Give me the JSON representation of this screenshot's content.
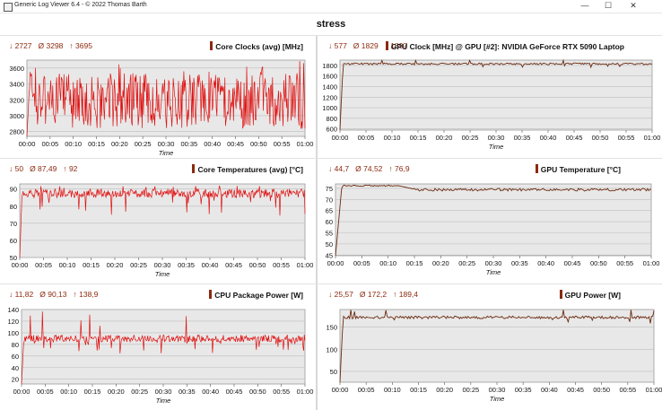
{
  "window": {
    "title": "Generic Log Viewer 6.4 - © 2022 Thomas Barth",
    "min_label": "—",
    "max_label": "☐",
    "close_label": "✕"
  },
  "header": {
    "title": "stress"
  },
  "colors": {
    "accent": "#8b2a0f",
    "series_red": "#e01010",
    "series_brown": "#6b2a10",
    "plot_bg": "#e8e8e8",
    "grid": "#bdbdbd"
  },
  "panels": [
    {
      "id": "core-clocks",
      "title": "Core Clocks (avg) [MHz]",
      "stats": {
        "min": "↓ 2727",
        "avg": "Ø 3298",
        "max": "↑ 3695"
      },
      "chart_data": {
        "type": "line",
        "title": "Core Clocks (avg) [MHz]",
        "xlabel": "Time",
        "x_ticks": [
          "00:00",
          "00:05",
          "00:10",
          "00:15",
          "00:20",
          "00:25",
          "00:30",
          "00:35",
          "00:40",
          "00:45",
          "00:50",
          "00:55",
          "01:00"
        ],
        "y_ticks": [
          2800,
          3000,
          3200,
          3400,
          3600
        ],
        "ylim": [
          2740,
          3700
        ],
        "series": [
          {
            "color": "#e01010",
            "kind": "noise",
            "baseline": 3298,
            "low": 2880,
            "high": 3560,
            "start": 2727,
            "peak": 3695,
            "min": 2727
          }
        ]
      }
    },
    {
      "id": "gpu-clock",
      "title": "GPU Clock [MHz] @ GPU [#2]: NVIDIA GeForce RTX 5090 Laptop",
      "stats": {
        "min": "↓ 577",
        "avg": "Ø 1829",
        "max": "↑ 1897"
      },
      "chart_data": {
        "type": "line",
        "title": "GPU Clock [MHz] @ GPU [#2]: NVIDIA GeForce RTX 5090 Laptop",
        "xlabel": "Time",
        "x_ticks": [
          "00:00",
          "00:05",
          "00:10",
          "00:15",
          "00:20",
          "00:25",
          "00:30",
          "00:35",
          "00:40",
          "00:45",
          "00:50",
          "00:55",
          "01:00"
        ],
        "y_ticks": [
          600,
          800,
          1000,
          1200,
          1400,
          1600,
          1800
        ],
        "ylim": [
          577,
          1900
        ],
        "series": [
          {
            "color": "#6b2a10",
            "kind": "flat",
            "baseline": 1829,
            "low": 1800,
            "high": 1870,
            "start": 577,
            "peak": 1897,
            "min": 577
          }
        ]
      }
    },
    {
      "id": "core-temps",
      "title": "Core Temperatures (avg) [°C]",
      "stats": {
        "min": "↓ 50",
        "avg": "Ø 87,49",
        "max": "↑ 92"
      },
      "chart_data": {
        "type": "line",
        "title": "Core Temperatures (avg) [°C]",
        "xlabel": "Time",
        "x_ticks": [
          "00:00",
          "00:05",
          "00:10",
          "00:15",
          "00:20",
          "00:25",
          "00:30",
          "00:35",
          "00:40",
          "00:45",
          "00:50",
          "00:55",
          "01:00"
        ],
        "y_ticks": [
          50,
          60,
          70,
          80,
          90
        ],
        "ylim": [
          50,
          93
        ],
        "series": [
          {
            "color": "#e01010",
            "kind": "noise",
            "baseline": 87.5,
            "low": 85,
            "high": 90,
            "start": 50,
            "peak": 92,
            "min": 50
          }
        ]
      }
    },
    {
      "id": "gpu-temp",
      "title": "GPU Temperature [°C]",
      "stats": {
        "min": "↓ 44,7",
        "avg": "Ø 74,52",
        "max": "↑ 76,9"
      },
      "chart_data": {
        "type": "line",
        "title": "GPU Temperature [°C]",
        "xlabel": "Time",
        "x_ticks": [
          "00:00",
          "00:05",
          "00:10",
          "00:15",
          "00:20",
          "00:25",
          "00:30",
          "00:35",
          "00:40",
          "00:45",
          "00:50",
          "00:55",
          "01:00"
        ],
        "y_ticks": [
          45,
          50,
          55,
          60,
          65,
          70,
          75
        ],
        "ylim": [
          44.7,
          77
        ],
        "series": [
          {
            "color": "#6b2a10",
            "kind": "warmup",
            "baseline": 74.4,
            "low": 73.8,
            "high": 75,
            "start": 44.7,
            "peak": 76.9,
            "min": 44.7
          }
        ]
      }
    },
    {
      "id": "cpu-power",
      "title": "CPU Package Power [W]",
      "stats": {
        "min": "↓ 11,82",
        "avg": "Ø 90,13",
        "max": "↑ 138,9"
      },
      "chart_data": {
        "type": "line",
        "title": "CPU Package Power [W]",
        "xlabel": "Time",
        "x_ticks": [
          "00:00",
          "00:05",
          "00:10",
          "00:15",
          "00:20",
          "00:25",
          "00:30",
          "00:35",
          "00:40",
          "00:45",
          "00:50",
          "00:55",
          "01:00"
        ],
        "y_ticks": [
          20,
          40,
          60,
          80,
          100,
          120,
          140
        ],
        "ylim": [
          11.82,
          140
        ],
        "series": [
          {
            "color": "#e01010",
            "kind": "noise",
            "baseline": 90,
            "low": 84,
            "high": 96,
            "start": 11.82,
            "peak": 138.9,
            "min": 11.82
          }
        ]
      }
    },
    {
      "id": "gpu-power",
      "title": "GPU Power [W]",
      "stats": {
        "min": "↓ 25,57",
        "avg": "Ø 172,2",
        "max": "↑ 189,4"
      },
      "chart_data": {
        "type": "line",
        "title": "GPU Power [W]",
        "xlabel": "Time",
        "x_ticks": [
          "00:00",
          "00:05",
          "00:10",
          "00:15",
          "00:20",
          "00:25",
          "00:30",
          "00:35",
          "00:40",
          "00:45",
          "00:50",
          "00:55",
          "01:00"
        ],
        "y_ticks": [
          50,
          100,
          150
        ],
        "ylim": [
          25.57,
          190
        ],
        "series": [
          {
            "color": "#6b2a10",
            "kind": "flat",
            "baseline": 172.2,
            "low": 166,
            "high": 178,
            "start": 25.57,
            "peak": 189.4,
            "min": 25.57
          }
        ]
      }
    }
  ]
}
